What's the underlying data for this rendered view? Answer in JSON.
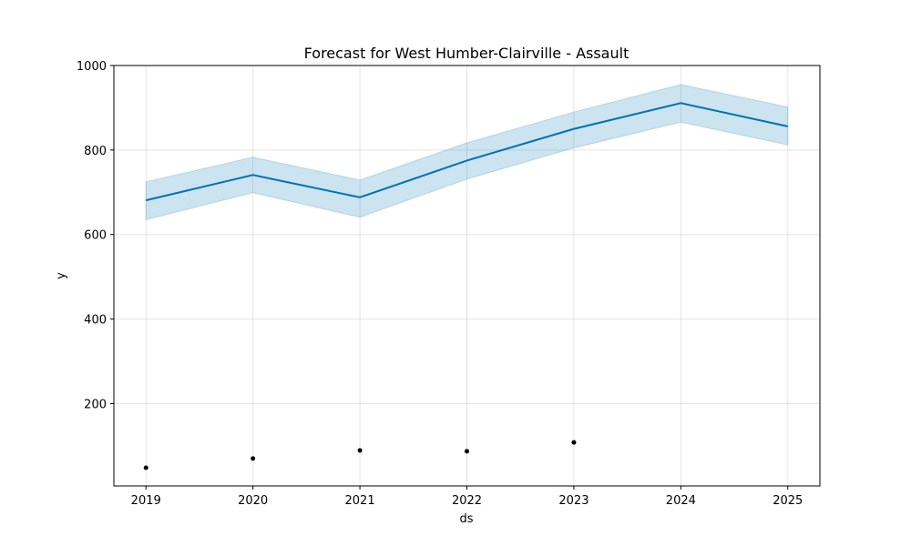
{
  "chart_data": {
    "type": "line",
    "title": "Forecast for West Humber-Clairville - Assault",
    "xlabel": "ds",
    "ylabel": "y",
    "x": [
      "2019",
      "2020",
      "2021",
      "2022",
      "2023",
      "2024",
      "2025"
    ],
    "xlim": [
      2018.7,
      2025.3
    ],
    "ylim": [
      5,
      1000
    ],
    "y_ticks": [
      200,
      400,
      600,
      800,
      1000
    ],
    "grid": true,
    "series": [
      {
        "role": "forecast",
        "color": "#0072b2",
        "values": [
          681,
          741,
          688,
          775,
          850,
          911,
          856
        ]
      },
      {
        "role": "uncertainty-interval",
        "color": "#0072b2",
        "lower": [
          635,
          699,
          641,
          731,
          805,
          866,
          812
        ],
        "upper": [
          725,
          783,
          729,
          817,
          890,
          955,
          902
        ]
      },
      {
        "role": "observed",
        "color": "#000000",
        "x": [
          "2019",
          "2020",
          "2021",
          "2022",
          "2023"
        ],
        "values": [
          48,
          70,
          89,
          87,
          108
        ]
      }
    ]
  }
}
